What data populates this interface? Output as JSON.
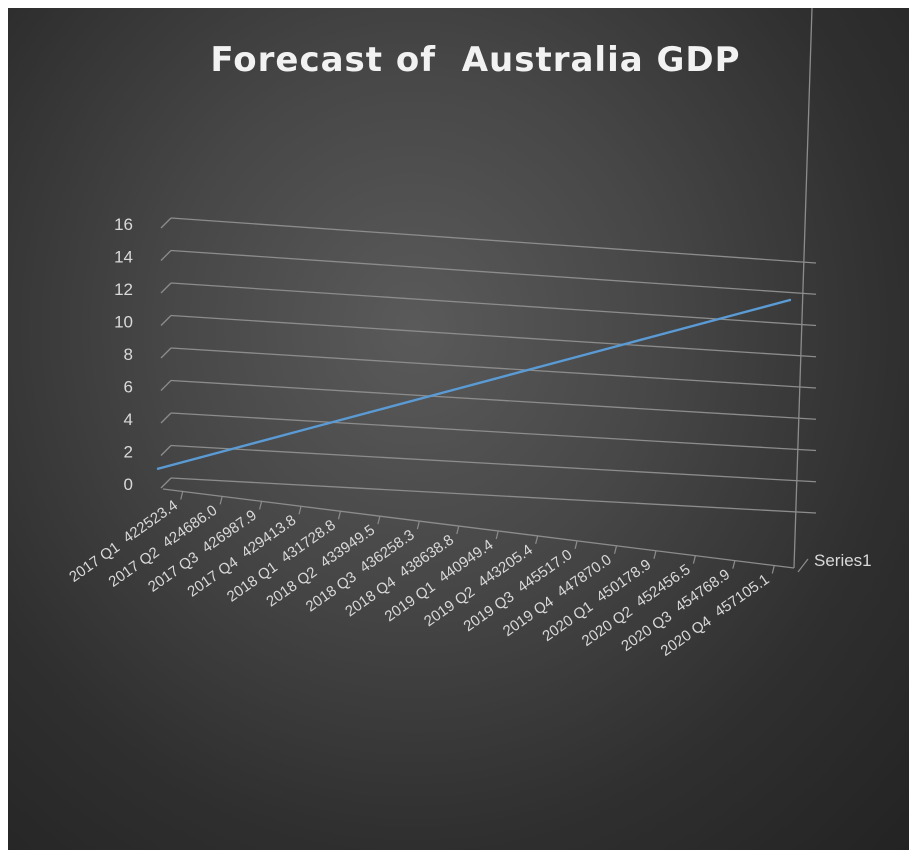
{
  "chart_data": {
    "type": "line",
    "title": "Forecast of  Australia GDP",
    "x_category_labels": [
      "2017 Q1",
      "2017 Q2",
      "2017 Q3",
      "2017 Q4",
      "2018 Q1",
      "2018 Q2",
      "2018 Q3",
      "2018 Q4",
      "2019 Q1",
      "2019 Q2",
      "2019 Q3",
      "2019 Q4",
      "2020 Q1",
      "2020 Q2",
      "2020 Q3",
      "2020 Q4"
    ],
    "x_value_labels": [
      "422523.4",
      "424686.0",
      "426987.9",
      "429413.8",
      "431728.8",
      "433949.5",
      "436258.3",
      "438638.8",
      "440949.4",
      "443205.4",
      "445517.0",
      "447870.0",
      "450178.9",
      "452456.5",
      "454768.9",
      "457105.1"
    ],
    "series": [
      {
        "name": "Series1",
        "values": [
          1,
          2,
          3,
          4,
          5,
          6,
          7,
          8,
          9,
          10,
          11,
          12,
          13,
          14,
          15,
          16
        ]
      }
    ],
    "yticks": [
      "0",
      "2",
      "4",
      "6",
      "8",
      "10",
      "12",
      "14",
      "16"
    ],
    "ylim": [
      0,
      16
    ],
    "grid": true,
    "legend": "none",
    "colors": {
      "line": "#5b9bd5",
      "grid": "#8c8c8c",
      "text": "#d9d9d9"
    }
  }
}
